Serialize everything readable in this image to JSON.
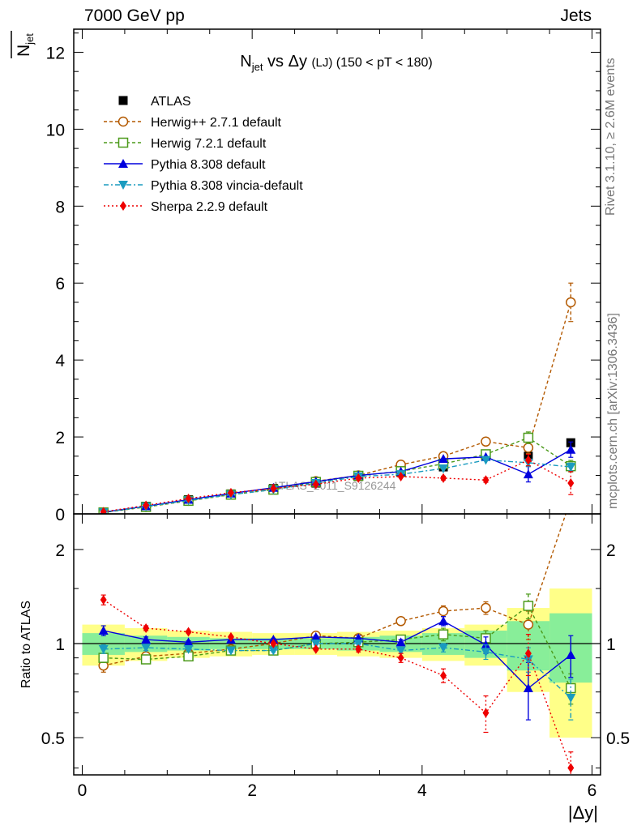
{
  "header": {
    "left": "7000 GeV pp",
    "right": "Jets"
  },
  "side_labels": {
    "rivet": "Rivet 3.1.10, ≥ 2.6M events",
    "mcplots": "mcplots.cern.ch [arXiv:1306.3436]"
  },
  "watermark": "ATLAS_2011_S9126244",
  "title_parts": {
    "main": "N",
    "sub": "jet",
    "rest": " vs Δy ",
    "tag": "(LJ)",
    "range": " (150 < pT < 180)"
  },
  "ylabel_top_parts": {
    "main": "N",
    "sub": "jet"
  },
  "ylabel_ratio": "Ratio to ATLAS",
  "xlabel": "|Δy|",
  "colors": {
    "atlas": "#000000",
    "herwigpp": "#b35900",
    "herwig7": "#4c9a1a",
    "pythia": "#0000dd",
    "vincia": "#1a9bbf",
    "sherpa": "#ee0000",
    "band_outer": "#ffff88",
    "band_inner": "#88ee99"
  },
  "chart_data": [
    {
      "type": "line",
      "panel": "main",
      "xlim": [
        -0.1,
        6.1
      ],
      "ylim": [
        0,
        12.6
      ],
      "xticks": [
        "0",
        "2",
        "4",
        "6"
      ],
      "yticks": [
        "0",
        "2",
        "4",
        "6",
        "8",
        "10",
        "12"
      ],
      "x": [
        0.25,
        0.75,
        1.25,
        1.75,
        2.25,
        2.75,
        3.25,
        3.75,
        4.25,
        4.75,
        5.25,
        5.75
      ],
      "legend_position": "top-left",
      "series": [
        {
          "name": "ATLAS",
          "values": [
            0.04,
            0.2,
            0.37,
            0.52,
            0.66,
            0.8,
            0.97,
            1.08,
            1.22,
            1.5,
            1.5,
            1.85
          ]
        },
        {
          "name": "Herwig++ 2.7.1 default",
          "values": [
            0.035,
            0.18,
            0.34,
            0.5,
            0.65,
            0.85,
            1.0,
            1.28,
            1.5,
            1.88,
            1.72,
            5.5
          ],
          "err": [
            0,
            0,
            0,
            0,
            0,
            0,
            0,
            0.04,
            0.06,
            0.1,
            0.15,
            0.5
          ]
        },
        {
          "name": "Herwig 7.2.1 default",
          "values": [
            0.037,
            0.18,
            0.34,
            0.5,
            0.63,
            0.83,
            0.99,
            1.11,
            1.3,
            1.55,
            1.98,
            1.24
          ],
          "err": [
            0,
            0,
            0,
            0,
            0,
            0,
            0,
            0,
            0.05,
            0.05,
            0.15,
            0.15
          ]
        },
        {
          "name": "Pythia 8.308 default",
          "values": [
            0.045,
            0.2,
            0.37,
            0.53,
            0.68,
            0.84,
            1.0,
            1.1,
            1.43,
            1.48,
            1.03,
            1.67
          ],
          "err": [
            0,
            0,
            0,
            0,
            0,
            0,
            0,
            0,
            0,
            0,
            0.2,
            0.2
          ]
        },
        {
          "name": "Pythia 8.308 vincia-default",
          "values": [
            0.039,
            0.19,
            0.35,
            0.5,
            0.63,
            0.8,
            0.97,
            1.03,
            1.18,
            1.4,
            1.33,
            1.22
          ],
          "err": [
            0,
            0,
            0,
            0,
            0,
            0,
            0,
            0,
            0,
            0,
            0.1,
            0.1
          ]
        },
        {
          "name": "Sherpa 2.2.9 default",
          "values": [
            0.055,
            0.22,
            0.4,
            0.55,
            0.66,
            0.77,
            0.93,
            0.97,
            0.93,
            0.88,
            1.4,
            0.8
          ],
          "err": [
            0,
            0,
            0,
            0,
            0,
            0,
            0,
            0,
            0.05,
            0.06,
            0.15,
            0.3
          ]
        }
      ]
    },
    {
      "type": "line",
      "panel": "ratio",
      "ylabel": "Ratio to ATLAS",
      "xlabel": "|Δy|",
      "log_y": true,
      "xlim": [
        -0.1,
        6.1
      ],
      "ylim": [
        0.38,
        2.6
      ],
      "xticks": [
        "0",
        "2",
        "4",
        "6"
      ],
      "yticks": [
        "0.5",
        "1",
        "2"
      ],
      "x": [
        0.25,
        0.75,
        1.25,
        1.75,
        2.25,
        2.75,
        3.25,
        3.75,
        4.25,
        4.75,
        5.25,
        5.75
      ],
      "band_edges": [
        0,
        0.5,
        1.0,
        1.5,
        2.0,
        2.5,
        3.0,
        3.5,
        4.0,
        4.5,
        5.0,
        5.5,
        6.0
      ],
      "band_outer": [
        0.15,
        0.12,
        0.1,
        0.09,
        0.08,
        0.08,
        0.09,
        0.1,
        0.12,
        0.15,
        0.3,
        0.5
      ],
      "band_inner": [
        0.08,
        0.06,
        0.05,
        0.04,
        0.04,
        0.04,
        0.05,
        0.06,
        0.08,
        0.1,
        0.18,
        0.25
      ],
      "series": [
        {
          "name": "Herwig++ 2.7.1 default",
          "values": [
            0.85,
            0.91,
            0.93,
            0.96,
            1.0,
            1.06,
            1.04,
            1.18,
            1.27,
            1.3,
            1.15,
            2.9
          ],
          "err": [
            0.04,
            0.02,
            0.01,
            0.01,
            0.01,
            0.01,
            0.02,
            0.03,
            0.05,
            0.06,
            0.12,
            0.3
          ]
        },
        {
          "name": "Herwig 7.2.1 default",
          "values": [
            0.9,
            0.89,
            0.91,
            0.95,
            0.95,
            1.0,
            1.01,
            1.03,
            1.07,
            1.04,
            1.32,
            0.72
          ],
          "err": [
            0.03,
            0.02,
            0.01,
            0.01,
            0.01,
            0.01,
            0.02,
            0.03,
            0.05,
            0.06,
            0.12,
            0.08
          ]
        },
        {
          "name": "Pythia 8.308 default",
          "values": [
            1.1,
            1.03,
            1.01,
            1.03,
            1.03,
            1.05,
            1.04,
            1.01,
            1.18,
            0.99,
            0.72,
            0.92
          ],
          "err": [
            0.04,
            0.02,
            0.01,
            0.01,
            0.01,
            0.01,
            0.02,
            0.02,
            0.04,
            0.06,
            0.15,
            0.14
          ]
        },
        {
          "name": "Pythia 8.308 vincia-default",
          "values": [
            0.96,
            0.97,
            0.96,
            0.95,
            0.95,
            1.0,
            1.0,
            0.95,
            0.97,
            0.94,
            0.89,
            0.67
          ],
          "err": [
            0.03,
            0.02,
            0.01,
            0.01,
            0.01,
            0.01,
            0.02,
            0.02,
            0.03,
            0.05,
            0.08,
            0.1
          ]
        },
        {
          "name": "Sherpa 2.2.9 default",
          "values": [
            1.38,
            1.12,
            1.09,
            1.05,
            1.0,
            0.96,
            0.96,
            0.9,
            0.79,
            0.6,
            0.93,
            0.4
          ],
          "err": [
            0.05,
            0.02,
            0.01,
            0.01,
            0.01,
            0.01,
            0.02,
            0.03,
            0.04,
            0.08,
            0.14,
            0.05
          ]
        }
      ]
    }
  ]
}
